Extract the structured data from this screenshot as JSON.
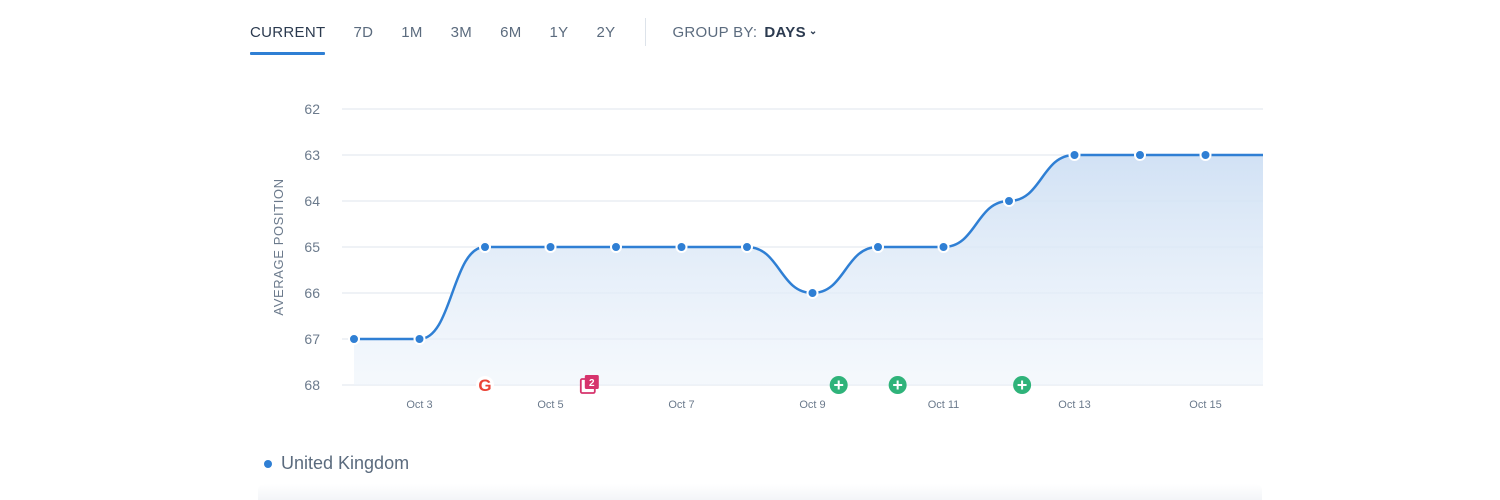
{
  "tabs": [
    {
      "label": "CURRENT",
      "active": true
    },
    {
      "label": "7D",
      "active": false
    },
    {
      "label": "1M",
      "active": false
    },
    {
      "label": "3M",
      "active": false
    },
    {
      "label": "6M",
      "active": false
    },
    {
      "label": "1Y",
      "active": false
    },
    {
      "label": "2Y",
      "active": false
    }
  ],
  "group_by": {
    "label": "GROUP BY:",
    "value": "DAYS",
    "icon": "chevron-down-icon"
  },
  "legend": {
    "label": "United Kingdom",
    "color": "#2f7fd4"
  },
  "colors": {
    "line": "#2f7fd4",
    "grid": "#dfe4ec",
    "google": "#ea4335",
    "pages": "#d6336c",
    "added": "#2fb37a"
  },
  "chart_data": {
    "type": "line",
    "ylabel": "AVERAGE POSITION",
    "y_inverted": true,
    "ylim": [
      62,
      68
    ],
    "yticks": [
      "62",
      "63",
      "64",
      "65",
      "66",
      "67",
      "68"
    ],
    "xtick_labels": [
      "Oct 3",
      "Oct 5",
      "Oct 7",
      "Oct 9",
      "Oct 11",
      "Oct 13",
      "Oct 15"
    ],
    "x": [
      "Oct 2",
      "Oct 3",
      "Oct 4",
      "Oct 5",
      "Oct 6",
      "Oct 7",
      "Oct 8",
      "Oct 9",
      "Oct 10",
      "Oct 11",
      "Oct 12",
      "Oct 13",
      "Oct 14",
      "Oct 15"
    ],
    "series": [
      {
        "name": "United Kingdom",
        "values": [
          67,
          67,
          65,
          65,
          65,
          65,
          65,
          66,
          65,
          65,
          64,
          63,
          63,
          63
        ]
      }
    ],
    "events": [
      {
        "date": "Oct 4",
        "icon": "google-icon"
      },
      {
        "date": "Oct 5.6",
        "icon": "pages-icon"
      },
      {
        "date": "Oct 9.4",
        "icon": "plus-icon"
      },
      {
        "date": "Oct 10.3",
        "icon": "plus-icon"
      },
      {
        "date": "Oct 12.2",
        "icon": "plus-icon"
      }
    ],
    "grid": true,
    "legend_position": "bottom-left"
  }
}
